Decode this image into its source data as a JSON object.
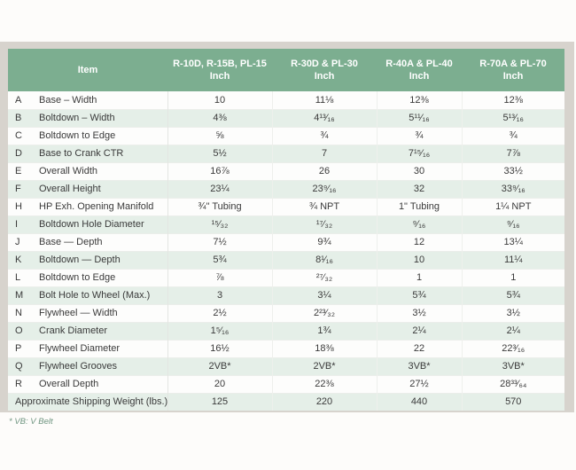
{
  "theme": {
    "header_bg": "#7cae90",
    "header_text": "#ffffff",
    "row_tint": "#e5efe8",
    "frame_gray": "#d7d3cd",
    "text": "#3a3a3a",
    "footnote_green": "#6f9580"
  },
  "table": {
    "item_header": "Item",
    "unit_label": "Inch",
    "columns": [
      "R-10D, R-15B, PL-15",
      "R-30D & PL-30",
      "R-40A & PL-40",
      "R-70A & PL-70"
    ],
    "rows": [
      {
        "letter": "A",
        "item": "Base – Width",
        "values": [
          "10",
          "11⅛",
          "12⅜",
          "12⅜"
        ]
      },
      {
        "letter": "B",
        "item": "Boltdown – Width",
        "values": [
          "4⅜",
          "4¹³⁄₁₆",
          "5¹¹⁄₁₆",
          "5¹³⁄₁₆"
        ]
      },
      {
        "letter": "C",
        "item": "Boltdown to Edge",
        "values": [
          "⅝",
          "¾",
          "¾",
          "¾"
        ]
      },
      {
        "letter": "D",
        "item": "Base to Crank CTR",
        "values": [
          "5½",
          "7",
          "7¹⁵⁄₁₆",
          "7⅞"
        ]
      },
      {
        "letter": "E",
        "item": "Overall Width",
        "values": [
          "16⅞",
          "26",
          "30",
          "33½"
        ]
      },
      {
        "letter": "F",
        "item": "Overall Height",
        "values": [
          "23¼",
          "23⁹⁄₁₆",
          "32",
          "33⁹⁄₁₆"
        ]
      },
      {
        "letter": "H",
        "item": "HP Exh. Opening Manifold",
        "values": [
          "¾\" Tubing",
          "¾ NPT",
          "1\" Tubing",
          "1¼ NPT"
        ]
      },
      {
        "letter": "I",
        "item": "Boltdown Hole Diameter",
        "values": [
          "¹⁵⁄₃₂",
          "¹⁷⁄₃₂",
          "⁹⁄₁₆",
          "⁹⁄₁₆"
        ]
      },
      {
        "letter": "J",
        "item": "Base — Depth",
        "values": [
          "7½",
          "9¾",
          "12",
          "13¼"
        ]
      },
      {
        "letter": "K",
        "item": "Boltdown — Depth",
        "values": [
          "5¾",
          "8¹⁄₁₆",
          "10",
          "11¼"
        ]
      },
      {
        "letter": "L",
        "item": "Boltdown to Edge",
        "values": [
          "⅞",
          "²⁷⁄₃₂",
          "1",
          "1"
        ]
      },
      {
        "letter": "M",
        "item": "Bolt Hole to Wheel (Max.)",
        "values": [
          "3",
          "3¼",
          "5¾",
          "5¾"
        ]
      },
      {
        "letter": "N",
        "item": "Flywheel — Width",
        "values": [
          "2½",
          "2²³⁄₃₂",
          "3½",
          "3½"
        ]
      },
      {
        "letter": "O",
        "item": "Crank Diameter",
        "values": [
          "1⁵⁄₁₆",
          "1¾",
          "2¼",
          "2¼"
        ]
      },
      {
        "letter": "P",
        "item": "Flywheel Diameter",
        "values": [
          "16½",
          "18⅜",
          "22",
          "22³⁄₁₆"
        ]
      },
      {
        "letter": "Q",
        "item": "Flywheel Grooves",
        "values": [
          "2VB*",
          "2VB*",
          "3VB*",
          "3VB*"
        ]
      },
      {
        "letter": "R",
        "item": "Overall Depth",
        "values": [
          "20",
          "22⅜",
          "27½",
          "28³³⁄₆₄"
        ]
      },
      {
        "letter": null,
        "item": "Approximate Shipping Weight (lbs.)",
        "values": [
          "125",
          "220",
          "440",
          "570"
        ]
      }
    ]
  },
  "footnote": "* VB: V Belt"
}
